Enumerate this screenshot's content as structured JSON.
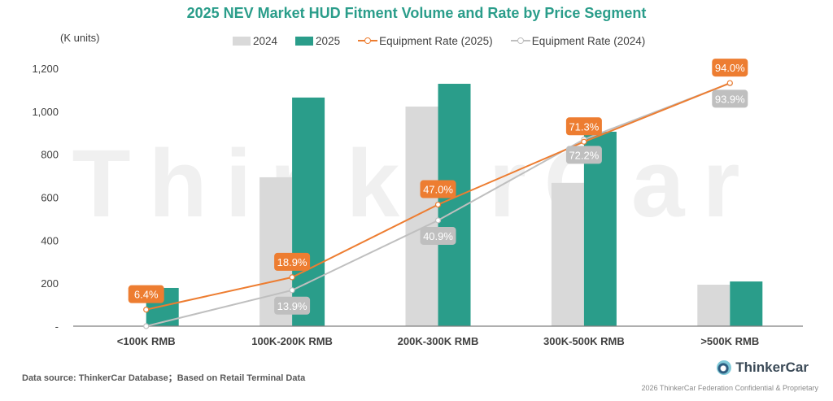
{
  "chart_data": {
    "type": "bar",
    "title": "2025 NEV Market HUD Fitment Volume and Rate by Price Segment",
    "ylabel": "(K units)",
    "xlabel": "",
    "ylim": [
      0,
      1200
    ],
    "yticks": [
      0,
      200,
      400,
      600,
      800,
      1000,
      1200
    ],
    "ytick_labels": [
      "-",
      "200",
      "400",
      "600",
      "800",
      "1,000",
      "1,200"
    ],
    "categories": [
      "<100K RMB",
      "100K-200K RMB",
      "200K-300K RMB",
      "300K-500K RMB",
      ">500K RMB"
    ],
    "series": [
      {
        "name": "2024",
        "type": "bar",
        "color": "#d9d9d9",
        "values": [
          0,
          693,
          1022,
          667,
          193
        ]
      },
      {
        "name": "2025",
        "type": "bar",
        "color": "#2a9d8a",
        "values": [
          178,
          1064,
          1128,
          905,
          208
        ]
      },
      {
        "name": "Equipment Rate (2025)",
        "type": "line",
        "axis": "secondary",
        "color": "#ed7d31",
        "values": [
          6.4,
          18.9,
          47.0,
          71.3,
          94.0
        ],
        "labels": [
          "6.4%",
          "18.9%",
          "47.0%",
          "71.3%",
          "94.0%"
        ]
      },
      {
        "name": "Equipment Rate (2024)",
        "type": "line",
        "axis": "secondary",
        "color": "#bfbfbf",
        "values": [
          0,
          13.9,
          40.9,
          72.2,
          93.9
        ],
        "labels": [
          "",
          "13.9%",
          "40.9%",
          "72.2%",
          "93.9%"
        ]
      }
    ],
    "secondary_ylim": [
      0,
      100
    ],
    "legend_position": "top-center",
    "grid": false,
    "watermark": "ThinkerCar"
  },
  "legend": {
    "items": [
      {
        "label": "2024"
      },
      {
        "label": "2025"
      },
      {
        "label": "Equipment Rate (2025)"
      },
      {
        "label": "Equipment Rate (2024)"
      }
    ]
  },
  "footer": {
    "source": "Data source: ThinkerCar Database；Based on Retail Terminal Data",
    "brand": "ThinkerCar",
    "copyright": "2026 ThinkerCar Federation Confidential & Proprietary"
  }
}
